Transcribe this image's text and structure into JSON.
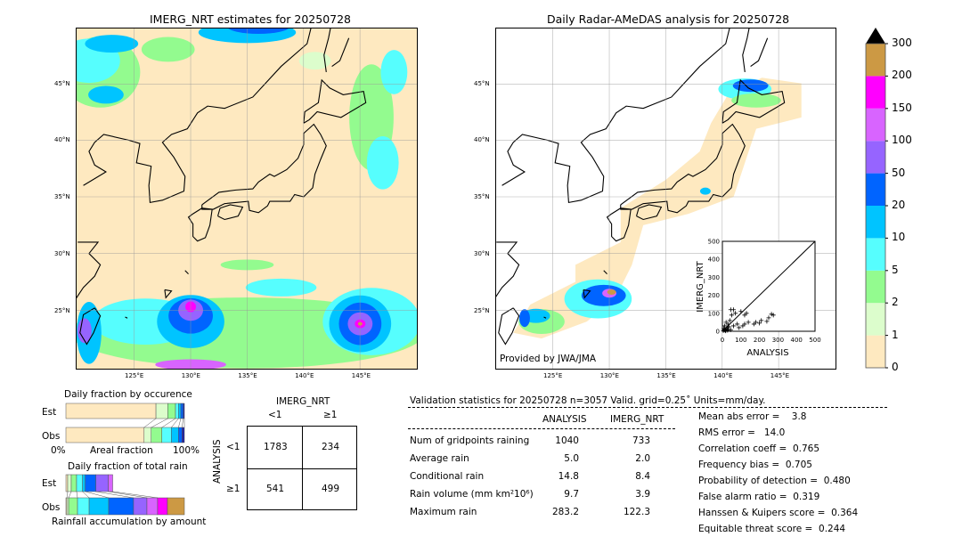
{
  "left_map": {
    "title": "IMERG_NRT estimates for 20250728"
  },
  "right_map": {
    "title": "Daily Radar-AMeDAS analysis for 20250728",
    "credit": "Provided by JWA/JMA"
  },
  "lat_ticks": [
    "45°N",
    "40°N",
    "35°N",
    "30°N",
    "25°N"
  ],
  "lon_ticks": [
    "125°E",
    "130°E",
    "135°E",
    "140°E",
    "145°E"
  ],
  "colorbar": {
    "labels": [
      "0",
      "1",
      "2",
      "5",
      "10",
      "20",
      "50",
      "100",
      "150",
      "200",
      "300"
    ],
    "colors": [
      "#fee9c0",
      "#dcfdcc",
      "#93fb8f",
      "#56fefe",
      "#00c4ff",
      "#0064ff",
      "#9664ff",
      "#d864ff",
      "#ff00ff",
      "#cc9944"
    ],
    "extend_color": "#000000"
  },
  "scatter": {
    "xlabel": "ANALYSIS",
    "ylabel": "IMERG_NRT",
    "ticks": [
      "0",
      "100",
      "200",
      "300",
      "400",
      "500"
    ],
    "range": [
      0,
      500
    ],
    "points": [
      [
        5,
        3
      ],
      [
        10,
        8
      ],
      [
        15,
        5
      ],
      [
        20,
        12
      ],
      [
        25,
        20
      ],
      [
        30,
        10
      ],
      [
        35,
        25
      ],
      [
        12,
        30
      ],
      [
        40,
        60
      ],
      [
        45,
        120
      ],
      [
        60,
        120
      ],
      [
        50,
        90
      ],
      [
        70,
        100
      ],
      [
        100,
        110
      ],
      [
        120,
        90
      ],
      [
        130,
        100
      ],
      [
        80,
        40
      ],
      [
        90,
        20
      ],
      [
        110,
        30
      ],
      [
        120,
        40
      ],
      [
        140,
        50
      ],
      [
        170,
        40
      ],
      [
        180,
        50
      ],
      [
        200,
        45
      ],
      [
        210,
        60
      ],
      [
        240,
        55
      ],
      [
        250,
        75
      ],
      [
        265,
        95
      ],
      [
        275,
        90
      ],
      [
        60,
        30
      ],
      [
        30,
        40
      ],
      [
        20,
        50
      ],
      [
        8,
        15
      ],
      [
        18,
        2
      ],
      [
        28,
        5
      ],
      [
        45,
        8
      ]
    ]
  },
  "occurrence": {
    "title": "Daily fraction by occurence",
    "rows": [
      "Est",
      "Obs"
    ],
    "xlabel_left": "0%",
    "xlabel_mid": "Areal fraction",
    "xlabel_right": "100%",
    "est": [
      76,
      10,
      6.5,
      2.5,
      2,
      2,
      1
    ],
    "obs": [
      66,
      6,
      9,
      8,
      6,
      3,
      2
    ]
  },
  "total_rain": {
    "title": "Daily fraction of total rain",
    "rows": [
      "Est",
      "Obs"
    ],
    "xlabel": "Rainfall accumulation by amount",
    "est": [
      1.5,
      3,
      4.5,
      5,
      2.3,
      9,
      10.5,
      3.7
    ],
    "obs": [
      0.8,
      1.5,
      7.5,
      9.8,
      16.5,
      21,
      11.3,
      9,
      8.3,
      14.3
    ]
  },
  "contingency": {
    "title": "IMERG_NRT",
    "cols": [
      "<1",
      "≥1"
    ],
    "rowlabel": "ANALYSIS",
    "rows": [
      "<1",
      "≥1"
    ],
    "cells": [
      [
        "1783",
        "234"
      ],
      [
        "541",
        "499"
      ]
    ]
  },
  "stats": {
    "header": "Validation statistics for 20250728  n=3057 Valid. grid=0.25˚ Units=mm/day.",
    "cols": [
      "ANALYSIS",
      "IMERG_NRT"
    ],
    "rows": [
      {
        "label": "Num of gridpoints raining",
        "a": "1040",
        "b": "733"
      },
      {
        "label": "Average rain",
        "a": "5.0",
        "b": "2.0"
      },
      {
        "label": "Conditional rain",
        "a": "14.8",
        "b": "8.4"
      },
      {
        "label": "Rain volume (mm km²10⁶)",
        "a": "9.7",
        "b": "3.9"
      },
      {
        "label": "Maximum rain",
        "a": "283.2",
        "b": "122.3"
      }
    ],
    "scores": [
      "Mean abs error =    3.8",
      "RMS error =   14.0",
      "Correlation coeff =  0.765",
      "Frequency bias =  0.705",
      "Probability of detection =  0.480",
      "False alarm ratio =  0.319",
      "Hanssen & Kuipers score =  0.364",
      "Equitable threat score =  0.244"
    ]
  }
}
